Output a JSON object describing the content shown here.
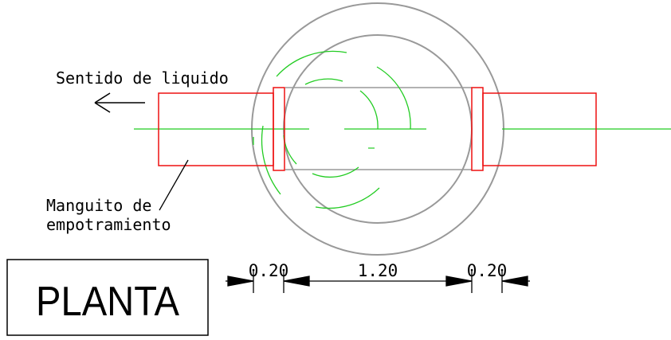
{
  "labels": {
    "flow_direction": "Sentido de liquido",
    "sleeve_line1": "Manguito de",
    "sleeve_line2": "empotramiento",
    "title": "PLANTA"
  },
  "dimensions": {
    "left_wall": "0.20",
    "inner_diameter": "1.20",
    "right_wall": "0.20"
  },
  "colors": {
    "structure": "#999999",
    "pipe": "#ee1111",
    "axis": "#22cc22",
    "ink": "#000000"
  }
}
